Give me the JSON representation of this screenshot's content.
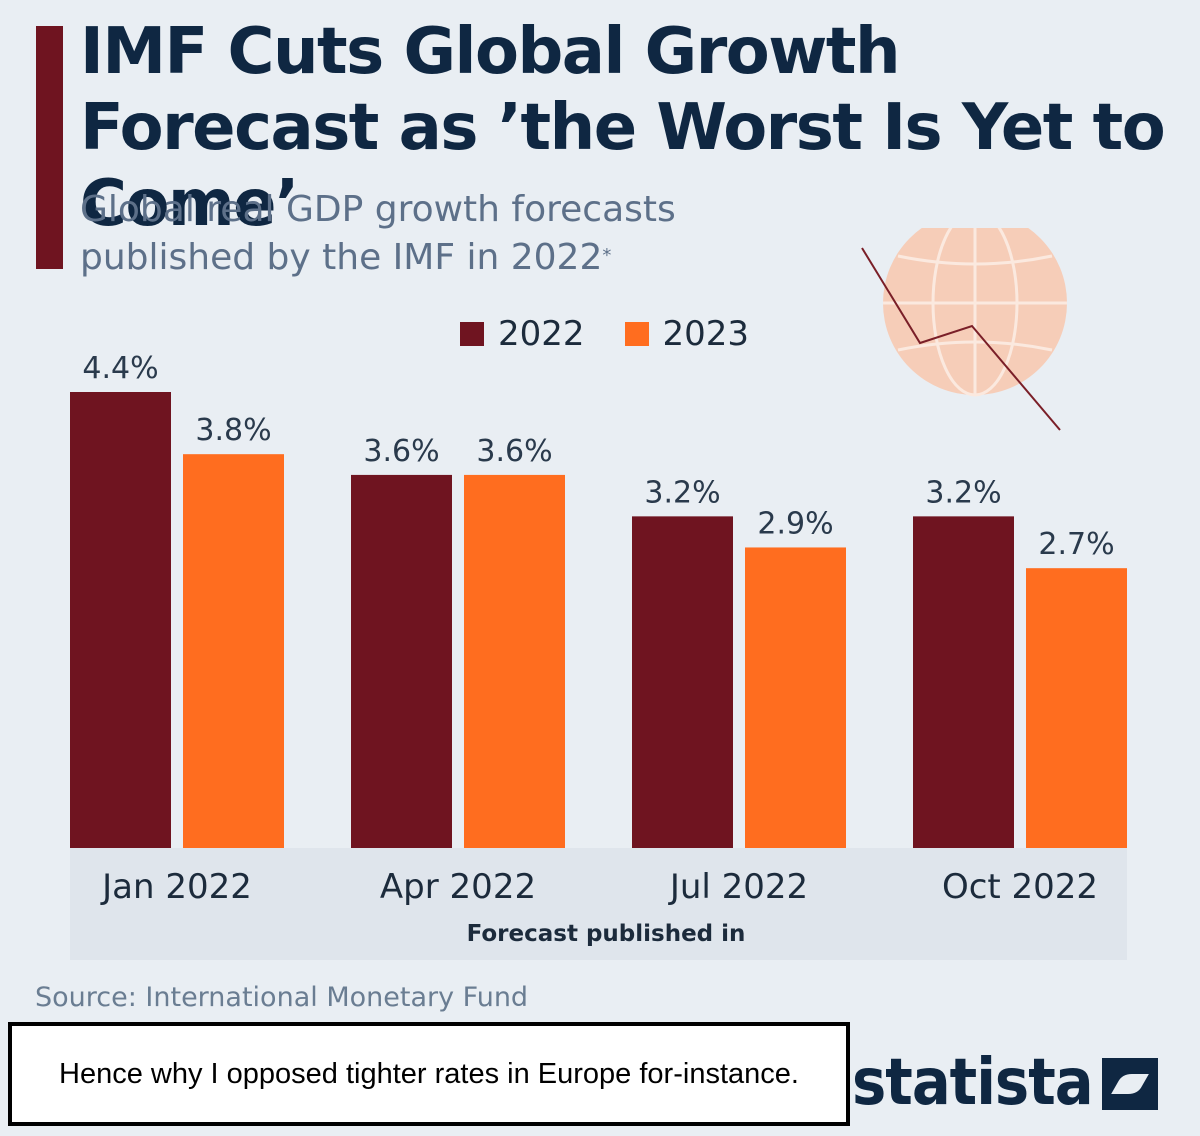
{
  "title": "IMF Cuts Global Growth Forecast as ’the Worst Is Yet to Come’",
  "subtitle": "Global real GDP growth forecasts published by the IMF in 2022",
  "subtitle_marker": "*",
  "source": "Source: International Monetary Fund",
  "brand": "statista",
  "comment": "Hence why I opposed tighter rates in Europe for-instance.",
  "colors": {
    "accent": "#6f1420",
    "series_2022": "#6f1420",
    "series_2023": "#ff6d1f",
    "axis_band": "#dfe5ec",
    "text_dark": "#0f2742"
  },
  "icons": [
    "globe-icon",
    "statista-logo-icon"
  ],
  "chart_data": {
    "type": "bar",
    "xlabel": "Forecast published in",
    "ylabel": "",
    "ylim": [
      0,
      4.4
    ],
    "grid": false,
    "legend_position": "top",
    "categories": [
      "Jan 2022",
      "Apr 2022",
      "Jul 2022",
      "Oct 2022"
    ],
    "series": [
      {
        "name": "2022",
        "values": [
          4.4,
          3.6,
          3.2,
          3.2
        ],
        "labels": [
          "4.4%",
          "3.6%",
          "3.2%",
          "3.2%"
        ]
      },
      {
        "name": "2023",
        "values": [
          3.8,
          3.6,
          2.9,
          2.7
        ],
        "labels": [
          "3.8%",
          "3.6%",
          "2.9%",
          "2.7%"
        ]
      }
    ]
  }
}
